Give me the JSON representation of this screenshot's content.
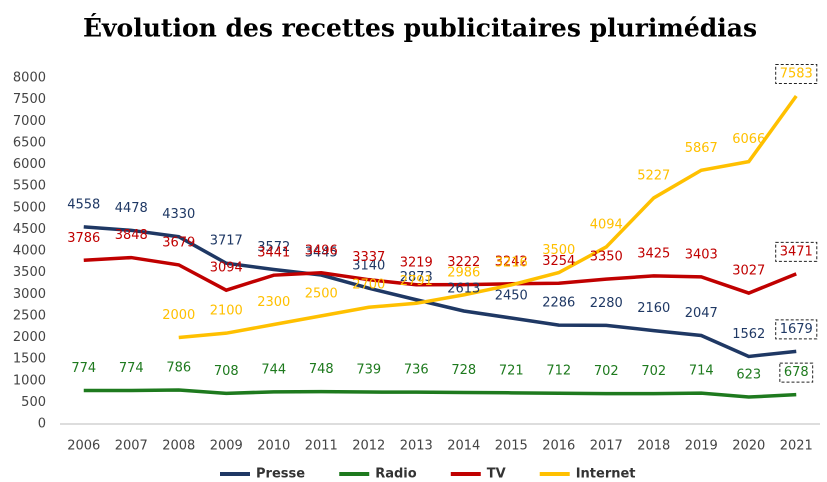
{
  "chart_data": {
    "type": "line",
    "title": "Évolution des recettes publicitaires plurimédias",
    "categories": [
      "2006",
      "2007",
      "2008",
      "2009",
      "2010",
      "2011",
      "2012",
      "2013",
      "2014",
      "2015",
      "2016",
      "2017",
      "2018",
      "2019",
      "2020",
      "2021"
    ],
    "series": [
      {
        "name": "Presse",
        "color": "#1f3864",
        "values": [
          4558,
          4478,
          4330,
          3717,
          3572,
          3445,
          3140,
          2873,
          2613,
          2450,
          2286,
          2280,
          2160,
          2047,
          1562,
          1679
        ]
      },
      {
        "name": "Radio",
        "color": "#1e7a1e",
        "values": [
          774,
          774,
          786,
          708,
          744,
          748,
          739,
          736,
          728,
          721,
          712,
          702,
          702,
          714,
          623,
          678
        ]
      },
      {
        "name": "TV",
        "color": "#c00000",
        "values": [
          3786,
          3848,
          3679,
          3094,
          3441,
          3496,
          3337,
          3219,
          3222,
          3242,
          3254,
          3350,
          3425,
          3403,
          3027,
          3471
        ]
      },
      {
        "name": "Internet",
        "color": "#ffc000",
        "values": [
          null,
          null,
          2000,
          2100,
          2300,
          2500,
          2700,
          2791,
          2986,
          3216,
          3500,
          4094,
          5227,
          5867,
          6066,
          7583
        ]
      }
    ],
    "ylim": [
      0,
      8000
    ],
    "yticks": [
      0,
      500,
      1000,
      1500,
      2000,
      2500,
      3000,
      3500,
      4000,
      4500,
      5000,
      5500,
      6000,
      6500,
      7000,
      7500,
      8000
    ]
  }
}
